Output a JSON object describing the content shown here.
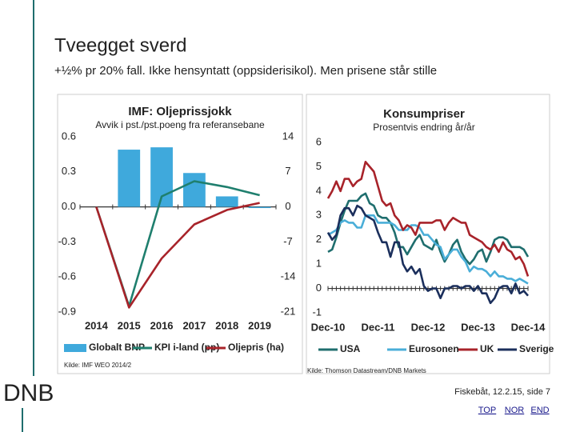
{
  "slide": {
    "title": "Tveegget sverd",
    "subtitle": "+½% pr 20% fall. Ikke hensyntatt (oppsiderisikol). Men prisene står stille",
    "logo": "DNB",
    "footer": "Fiskebåt, 12.2.15, side 7",
    "links": [
      "TOP",
      "NOR",
      "END"
    ]
  },
  "chart_data": [
    {
      "type": "combo",
      "title": "IMF: Oljeprissjokk",
      "subtitle": "Avvik i pst./pst.poeng fra referansebane",
      "source": "Kilde: IMF WEO 2014/2",
      "categories": [
        "2014",
        "2015",
        "2016",
        "2017",
        "2018",
        "2019"
      ],
      "ylim": [
        -0.9,
        0.6
      ],
      "yticks": [
        0.6,
        0.3,
        {
          "value": 0,
          "label": "0.0"
        },
        -0.3,
        -0.6,
        -0.9
      ],
      "y2lim": [
        -21,
        14
      ],
      "y2ticks": [
        14,
        7,
        0,
        -7,
        -14,
        -21
      ],
      "series": [
        {
          "name": "Globalt BNP",
          "type": "bar",
          "color": "#3fa9dc",
          "values": [
            null,
            0.49,
            0.51,
            0.29,
            0.09,
            -0.01
          ]
        },
        {
          "name": "KPI i-land (pp)",
          "type": "line",
          "color": "#1f7f6e",
          "values": [
            0,
            -0.85,
            0.09,
            0.22,
            0.17,
            0.1
          ]
        },
        {
          "name": "Oljepris (ha)",
          "type": "line",
          "axis": "y2",
          "color": "#a8232a",
          "values": [
            0,
            -20.1,
            -10.3,
            -3.5,
            -0.6,
            0.8
          ]
        }
      ]
    },
    {
      "type": "line",
      "title": "Konsumpriser",
      "subtitle": "Prosentvis endring år/år",
      "source": "Kilde: Thomson Datastream/DNB Markets",
      "categories": [
        "Dec-10",
        null,
        null,
        null,
        null,
        null,
        null,
        null,
        null,
        null,
        null,
        null,
        "Dec-11",
        null,
        null,
        null,
        null,
        null,
        null,
        null,
        null,
        null,
        null,
        null,
        "Dec-12",
        null,
        null,
        null,
        null,
        null,
        null,
        null,
        null,
        null,
        null,
        null,
        "Dec-13",
        null,
        null,
        null,
        null,
        null,
        null,
        null,
        null,
        null,
        null,
        null,
        "Dec-14"
      ],
      "ylim": [
        -1,
        6
      ],
      "yticks": [
        6,
        5,
        4,
        3,
        2,
        1,
        0,
        -1
      ],
      "series": [
        {
          "name": "USA",
          "color": "#1f6e6e",
          "values": [
            1.5,
            1.6,
            2.1,
            2.7,
            3.2,
            3.6,
            3.6,
            3.6,
            3.8,
            3.9,
            3.5,
            3.4,
            3.0,
            2.9,
            2.9,
            2.7,
            2.3,
            1.7,
            1.7,
            1.4,
            1.7,
            2.0,
            2.2,
            1.8,
            1.7,
            1.6,
            2.0,
            1.5,
            1.1,
            1.4,
            1.8,
            2.0,
            1.5,
            1.2,
            1.0,
            1.2,
            1.5,
            1.6,
            1.1,
            1.5,
            2.0,
            2.1,
            2.1,
            2.0,
            1.7,
            1.7,
            1.7,
            1.6,
            1.3
          ]
        },
        {
          "name": "Eurosonen",
          "color": "#4aaed8",
          "values": [
            2.2,
            2.3,
            2.4,
            2.7,
            2.8,
            2.7,
            2.7,
            2.5,
            2.5,
            3.0,
            3.0,
            3.0,
            2.7,
            2.7,
            2.7,
            2.7,
            2.6,
            2.4,
            2.4,
            2.4,
            2.6,
            2.6,
            2.5,
            2.2,
            2.2,
            2.0,
            1.8,
            1.7,
            1.2,
            1.4,
            1.6,
            1.6,
            1.3,
            1.1,
            0.7,
            0.9,
            0.8,
            0.8,
            0.7,
            0.5,
            0.7,
            0.5,
            0.5,
            0.4,
            0.4,
            0.3,
            0.4,
            0.3,
            0.2
          ]
        },
        {
          "name": "UK",
          "color": "#a8232a",
          "values": [
            3.7,
            4.0,
            4.4,
            4.0,
            4.5,
            4.5,
            4.2,
            4.4,
            4.5,
            5.2,
            5.0,
            4.8,
            4.2,
            3.6,
            3.4,
            3.5,
            3.0,
            2.8,
            2.4,
            2.6,
            2.5,
            2.2,
            2.7,
            2.7,
            2.7,
            2.7,
            2.8,
            2.8,
            2.4,
            2.7,
            2.9,
            2.8,
            2.7,
            2.7,
            2.2,
            2.1,
            2.0,
            1.9,
            1.7,
            1.6,
            1.8,
            1.5,
            1.9,
            1.6,
            1.5,
            1.2,
            1.3,
            1.0,
            0.5
          ]
        },
        {
          "name": "Sverige",
          "color": "#1b2f5c",
          "values": [
            2.3,
            2.0,
            2.2,
            3.0,
            3.3,
            3.3,
            3.0,
            3.4,
            3.3,
            3.0,
            2.9,
            2.8,
            2.3,
            1.9,
            1.9,
            1.3,
            1.9,
            1.9,
            1.0,
            0.7,
            0.9,
            0.6,
            0.8,
            0.1,
            -0.1,
            0.0,
            0.0,
            -0.4,
            0.0,
            0.0,
            0.1,
            0.1,
            0.0,
            0.1,
            0.1,
            -0.1,
            0.1,
            -0.2,
            -0.2,
            -0.6,
            -0.4,
            0.0,
            0.1,
            0.1,
            -0.2,
            0.2,
            -0.2,
            -0.1,
            -0.3
          ]
        }
      ]
    }
  ]
}
